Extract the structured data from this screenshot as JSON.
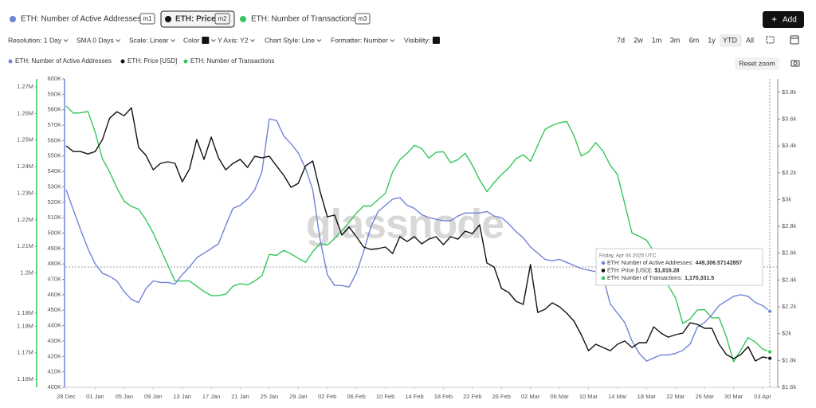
{
  "tabs": [
    {
      "label": "ETH: Number of Active Addresses",
      "badge": "m1"
    },
    {
      "label": "ETH: Price",
      "badge": "m2"
    },
    {
      "label": "ETH: Number of Transactions",
      "badge": "m3"
    }
  ],
  "add_button": "Add",
  "toolbar": [
    "Resolution: 1 Day",
    "SMA 0 Days",
    "Scale: Linear",
    "Color",
    "Y Axis: Y2",
    "Chart Style: Line",
    "Formatter: Number",
    "Visibility:"
  ],
  "ranges": [
    "7d",
    "2w",
    "1m",
    "3m",
    "6m",
    "1y",
    "YTD",
    "All"
  ],
  "reset_zoom": "Reset zoom",
  "chart_data": {
    "type": "line",
    "watermark": "glassnode",
    "x": [
      "28 Dec",
      "29 Dec",
      "30 Dec",
      "31 Dec",
      "01 Jan",
      "02 Jan",
      "03 Jan",
      "04 Jan",
      "05 Jan",
      "06 Jan",
      "07 Jan",
      "08 Jan",
      "09 Jan",
      "10 Jan",
      "11 Jan",
      "12 Jan",
      "13 Jan",
      "14 Jan",
      "15 Jan",
      "16 Jan",
      "17 Jan",
      "18 Jan",
      "19 Jan",
      "20 Jan",
      "21 Jan",
      "22 Jan",
      "23 Jan",
      "24 Jan",
      "25 Jan",
      "26 Jan",
      "27 Jan",
      "28 Jan",
      "29 Jan",
      "30 Jan",
      "31 Jan",
      "01 Feb",
      "02 Feb",
      "03 Feb",
      "04 Feb",
      "05 Feb",
      "06 Feb",
      "07 Feb",
      "08 Feb",
      "09 Feb",
      "10 Feb",
      "11 Feb",
      "12 Feb",
      "13 Feb",
      "14 Feb",
      "15 Feb",
      "16 Feb",
      "17 Feb",
      "18 Feb",
      "19 Feb",
      "20 Feb",
      "21 Feb",
      "22 Feb",
      "23 Feb",
      "24 Feb",
      "25 Feb",
      "26 Feb",
      "27 Feb",
      "28 Feb",
      "01 Mar",
      "02 Mar",
      "03 Mar",
      "04 Mar",
      "05 Mar",
      "06 Mar",
      "07 Mar",
      "08 Mar",
      "09 Mar",
      "10 Mar",
      "11 Mar",
      "12 Mar",
      "13 Mar",
      "14 Mar",
      "15 Mar",
      "16 Mar",
      "17 Mar",
      "18 Mar",
      "19 Mar",
      "20 Mar",
      "21 Mar",
      "22 Mar",
      "23 Mar",
      "24 Mar",
      "25 Mar",
      "26 Mar",
      "27 Mar",
      "28 Mar",
      "29 Mar",
      "30 Mar",
      "31 Mar",
      "01 Apr",
      "02 Apr",
      "03 Apr",
      "04 Apr"
    ],
    "series": [
      {
        "name": "ETH: Number of Active Addresses",
        "color": "#7283d6",
        "axis": "y",
        "values": [
          528000,
          515000,
          502000,
          490000,
          480000,
          474000,
          472000,
          469000,
          462000,
          457000,
          455000,
          464000,
          469000,
          468000,
          468000,
          467000,
          473000,
          478000,
          484000,
          487000,
          490000,
          493000,
          505000,
          516000,
          518000,
          522000,
          528000,
          540000,
          574000,
          573000,
          563000,
          558000,
          552000,
          542000,
          528000,
          496000,
          473000,
          466000,
          466000,
          465000,
          474000,
          488000,
          504000,
          514000,
          518000,
          522000,
          523000,
          518000,
          516000,
          512000,
          510000,
          509000,
          508000,
          508000,
          511000,
          513000,
          513000,
          513000,
          514000,
          511000,
          510000,
          506000,
          501000,
          497000,
          491000,
          487000,
          483000,
          482000,
          483000,
          481000,
          479000,
          477000,
          476000,
          475000,
          472000,
          454000,
          448000,
          442000,
          430000,
          422000,
          417000,
          419000,
          421000,
          421000,
          422000,
          424000,
          428000,
          439000,
          442000,
          447000,
          453000,
          456000,
          459000,
          460000,
          459000,
          455000,
          453000,
          449306.57142857
        ]
      },
      {
        "name": "ETH: Price [USD]",
        "color": "#111111",
        "axis": "y2",
        "values": [
          3400,
          3358,
          3358,
          3340,
          3358,
          3447,
          3607,
          3655,
          3625,
          3685,
          3389,
          3330,
          3222,
          3270,
          3282,
          3270,
          3133,
          3228,
          3448,
          3300,
          3466,
          3311,
          3222,
          3270,
          3300,
          3240,
          3323,
          3311,
          3323,
          3251,
          3181,
          3092,
          3121,
          3251,
          3288,
          3062,
          2872,
          2884,
          2735,
          2795,
          2723,
          2646,
          2628,
          2634,
          2646,
          2598,
          2723,
          2687,
          2723,
          2670,
          2705,
          2723,
          2664,
          2723,
          2705,
          2764,
          2746,
          2812,
          2527,
          2497,
          2337,
          2307,
          2242,
          2218,
          2515,
          2158,
          2182,
          2230,
          2200,
          2153,
          2093,
          1992,
          1873,
          1921,
          1897,
          1873,
          1921,
          1945,
          1897,
          1933,
          1933,
          2051,
          2004,
          1974,
          1992,
          2004,
          2081,
          2069,
          2040,
          2040,
          1921,
          1844,
          1814,
          1844,
          1903,
          1796,
          1826,
          1816.28
        ]
      },
      {
        "name": "ETH: Number of Transactions",
        "color": "#34c759",
        "axis": "y3",
        "values": [
          1262800,
          1260100,
          1260300,
          1260700,
          1253000,
          1243000,
          1238000,
          1232000,
          1227000,
          1225000,
          1224000,
          1220000,
          1215000,
          1209000,
          1203000,
          1197000,
          1197000,
          1197000,
          1195000,
          1193000,
          1191500,
          1191500,
          1192000,
          1195000,
          1196000,
          1195500,
          1197000,
          1199000,
          1207000,
          1206600,
          1208500,
          1207200,
          1205500,
          1204000,
          1208000,
          1211000,
          1210500,
          1213000,
          1216000,
          1219000,
          1222500,
          1225200,
          1225200,
          1227600,
          1230000,
          1238000,
          1242600,
          1245000,
          1248000,
          1246800,
          1243200,
          1245400,
          1245600,
          1241500,
          1242600,
          1245000,
          1240500,
          1235000,
          1230600,
          1234000,
          1237000,
          1239500,
          1243000,
          1244500,
          1242000,
          1248000,
          1254000,
          1255500,
          1256500,
          1257000,
          1251700,
          1244000,
          1245500,
          1249000,
          1245800,
          1240500,
          1237000,
          1226000,
          1215000,
          1213800,
          1212300,
          1208100,
          1203600,
          1195200,
          1190600,
          1181000,
          1182700,
          1186100,
          1186200,
          1183100,
          1183100,
          1176000,
          1166600,
          1171000,
          1175700,
          1174000,
          1171400,
          1170331.5
        ]
      }
    ],
    "ylim": [
      400000,
      600000
    ],
    "yticks": [
      {
        "value": 400000,
        "label": "400K"
      },
      {
        "value": 410000,
        "label": "410K"
      },
      {
        "value": 420000,
        "label": "420K"
      },
      {
        "value": 430000,
        "label": "430K"
      },
      {
        "value": 440000,
        "label": "440K"
      },
      {
        "value": 450000,
        "label": "450K"
      },
      {
        "value": 460000,
        "label": "460K"
      },
      {
        "value": 470000,
        "label": "470K"
      },
      {
        "value": 480000,
        "label": "480K"
      },
      {
        "value": 490000,
        "label": "490K"
      },
      {
        "value": 500000,
        "label": "500K"
      },
      {
        "value": 510000,
        "label": "510K"
      },
      {
        "value": 520000,
        "label": "520K"
      },
      {
        "value": 530000,
        "label": "530K"
      },
      {
        "value": 540000,
        "label": "540K"
      },
      {
        "value": 550000,
        "label": "550K"
      },
      {
        "value": 560000,
        "label": "560K"
      },
      {
        "value": 570000,
        "label": "570K"
      },
      {
        "value": 580000,
        "label": "580K"
      },
      {
        "value": 590000,
        "label": "590K"
      },
      {
        "value": 600000,
        "label": "600K"
      }
    ],
    "y2lim": [
      1600,
      3900
    ],
    "y2ticks": [
      {
        "value": 1600,
        "label": "$1.6k"
      },
      {
        "value": 1800,
        "label": "$1.8k"
      },
      {
        "value": 2000,
        "label": "$2k"
      },
      {
        "value": 2200,
        "label": "$2.2k"
      },
      {
        "value": 2400,
        "label": "$2.4k"
      },
      {
        "value": 2600,
        "label": "$2.6k"
      },
      {
        "value": 2800,
        "label": "$2.8k"
      },
      {
        "value": 3000,
        "label": "$3k"
      },
      {
        "value": 3200,
        "label": "$3.2k"
      },
      {
        "value": 3400,
        "label": "$3.4k"
      },
      {
        "value": 3600,
        "label": "$3.6k"
      },
      {
        "value": 3800,
        "label": "$3.8k"
      }
    ],
    "y3lim": [
      1157000,
      1273000
    ],
    "y3ticks": [
      {
        "value": 1160000,
        "label": "1.16M"
      },
      {
        "value": 1170000,
        "label": "1.17M"
      },
      {
        "value": 1180000,
        "label": "1.18M"
      },
      {
        "value": 1184900,
        "label": "1.18M"
      },
      {
        "value": 1200000,
        "label": "1.2M"
      },
      {
        "value": 1210000,
        "label": "1.21M"
      },
      {
        "value": 1220000,
        "label": "1.22M"
      },
      {
        "value": 1230000,
        "label": "1.23M"
      },
      {
        "value": 1240000,
        "label": "1.24M"
      },
      {
        "value": 1250000,
        "label": "1.25M"
      },
      {
        "value": 1260000,
        "label": "1.26M"
      },
      {
        "value": 1270000,
        "label": "1.27M"
      }
    ],
    "tooltip": {
      "date": "Friday, Apr 04 2025 UTC",
      "rows": [
        {
          "label": "ETH: Number of Active Addresses:",
          "value": "449,306.57142857"
        },
        {
          "label": "ETH: Price [USD]:",
          "value": "$1,816.28"
        },
        {
          "label": "ETH: Number of Transactions:",
          "value": "1,170,331.5"
        }
      ]
    }
  }
}
